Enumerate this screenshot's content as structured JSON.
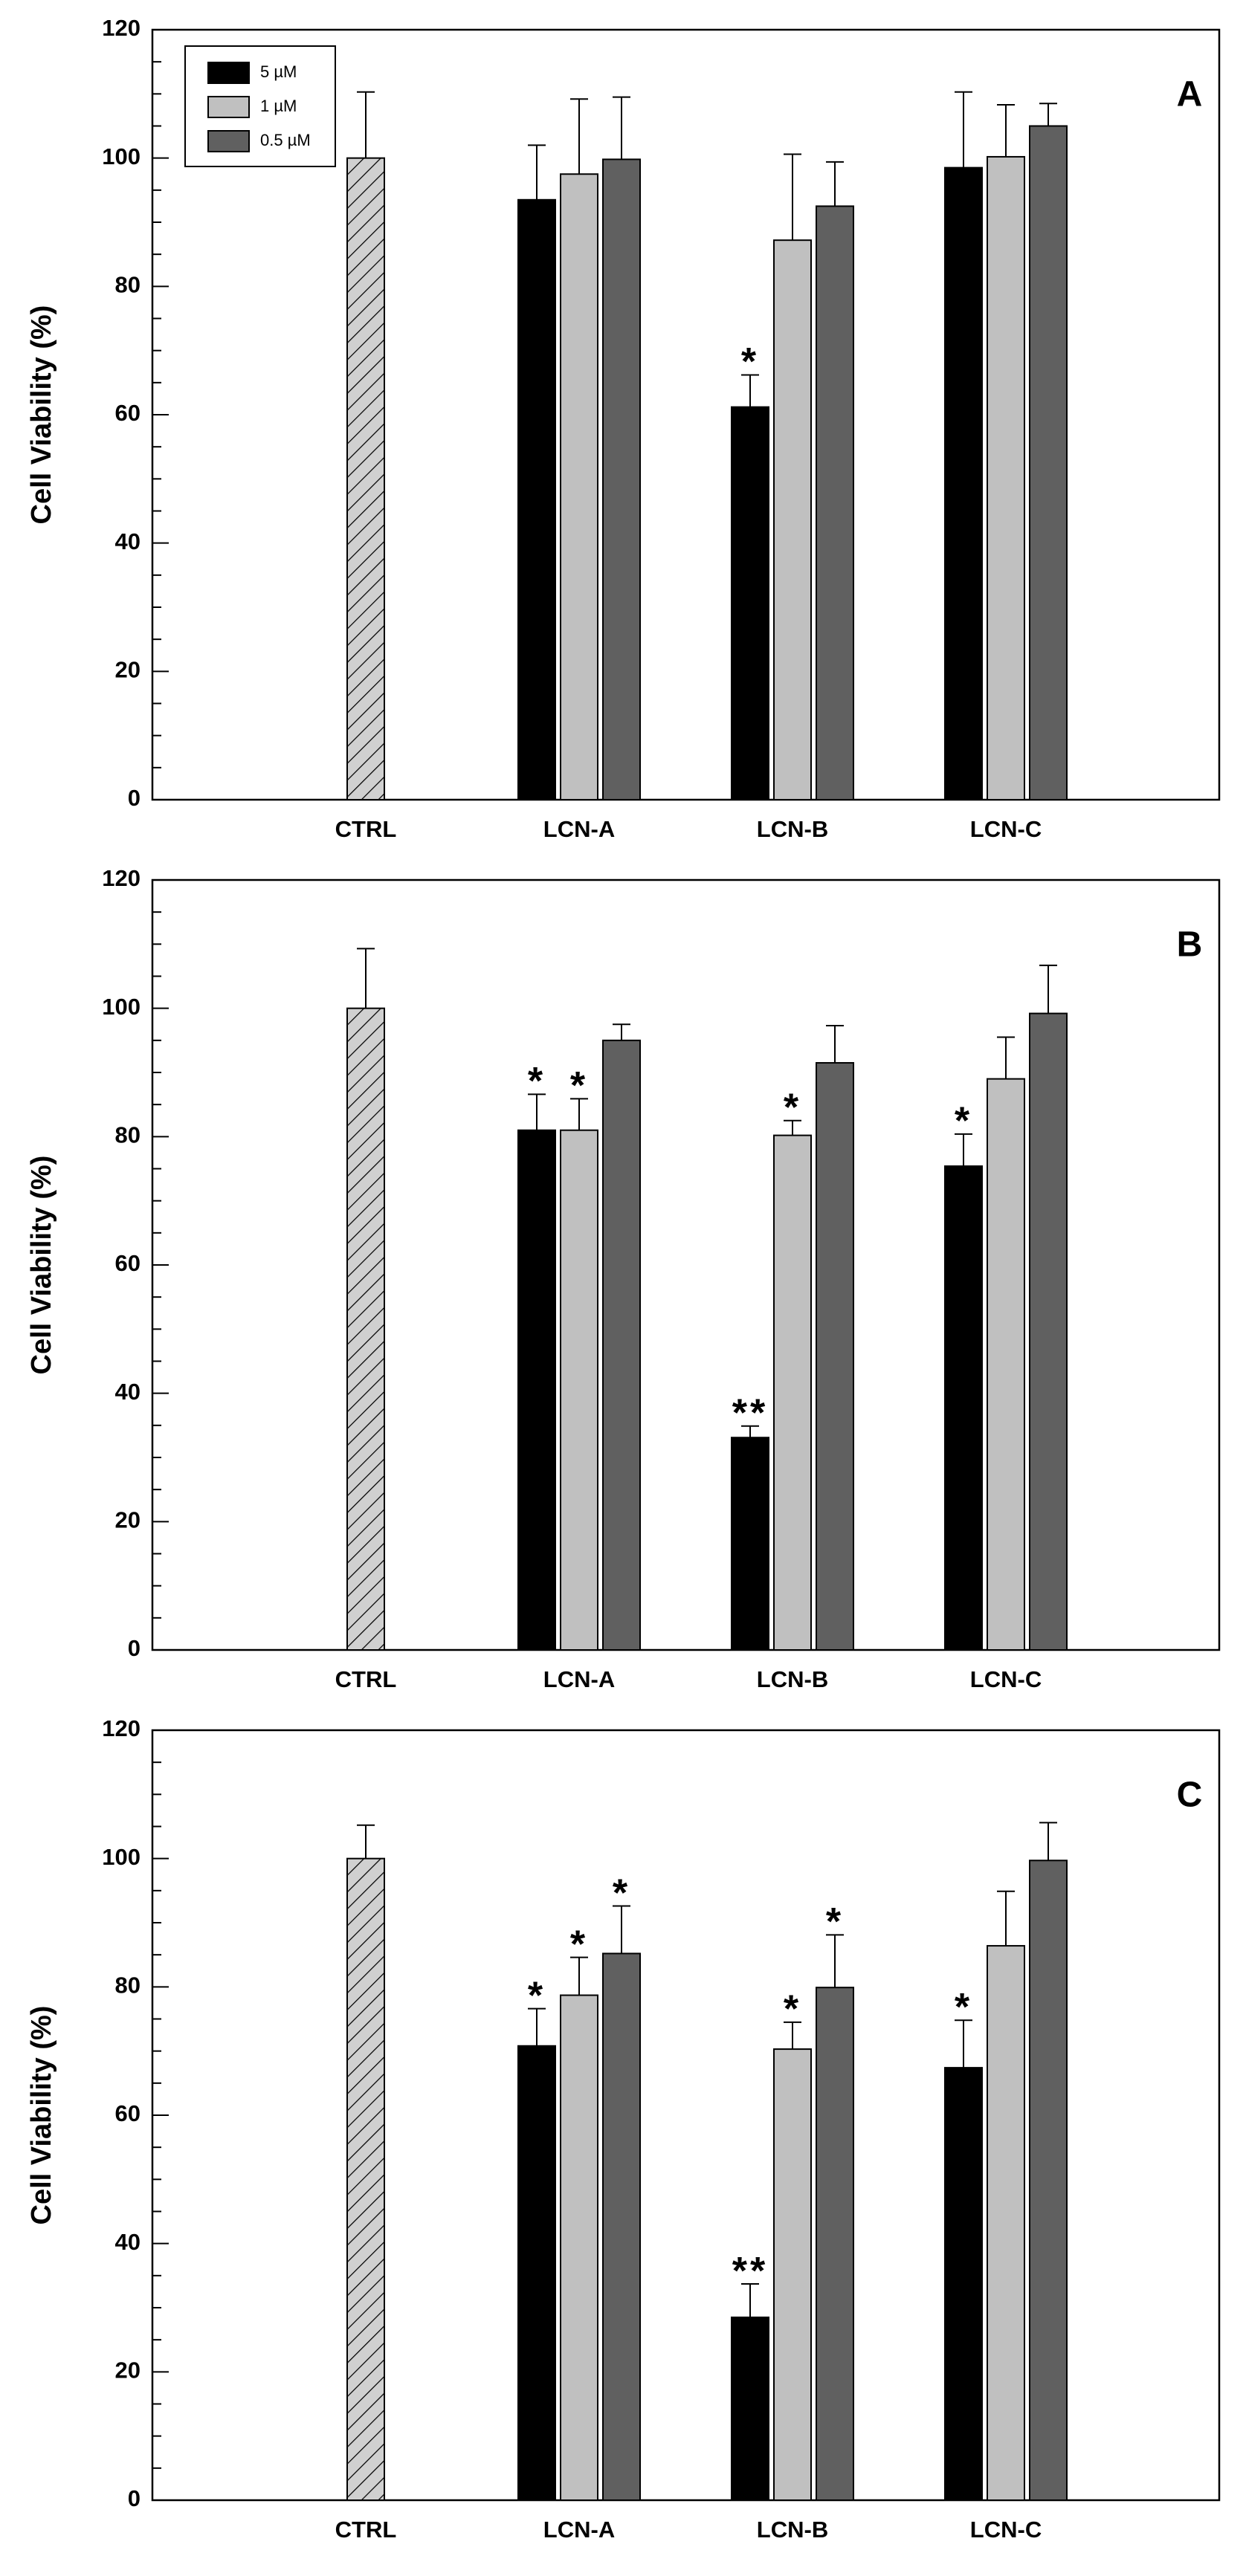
{
  "chart_data": [
    {
      "type": "bar",
      "panel_label": "A",
      "ylabel": "Cell Viability (%)",
      "categories": [
        "CTRL",
        "LCN-A",
        "LCN-B",
        "LCN-C"
      ],
      "ylim": [
        0,
        120
      ],
      "yticks": [
        0,
        20,
        40,
        60,
        80,
        100,
        120
      ],
      "yminorticks": [
        5,
        10,
        15,
        25,
        30,
        35,
        45,
        50,
        55,
        65,
        70,
        75,
        85,
        90,
        95,
        105,
        110,
        115
      ],
      "legend": "upper left",
      "series": [
        {
          "color": "#d0d0d0",
          "hatch": true,
          "values": [
            100,
            null,
            null,
            null
          ],
          "errors": [
            10.3,
            null,
            null,
            null
          ]
        },
        {
          "name": "5 µM",
          "color": "#000000",
          "values": [
            null,
            93.5,
            61.2,
            98.5
          ],
          "errors": [
            null,
            8.5,
            5,
            11.8
          ],
          "significance": [
            null,
            null,
            "*",
            null
          ]
        },
        {
          "name": "1 µM",
          "color": "#c0c0c0",
          "values": [
            null,
            97.5,
            87.2,
            100.2
          ],
          "errors": [
            null,
            11.7,
            13.4,
            8.1
          ]
        },
        {
          "name": "0.5 µM",
          "color": "#606060",
          "values": [
            null,
            99.8,
            92.5,
            105
          ],
          "errors": [
            null,
            9.7,
            6.9,
            3.5
          ]
        }
      ]
    },
    {
      "type": "bar",
      "panel_label": "B",
      "ylabel": "Cell Viability (%)",
      "categories": [
        "CTRL",
        "LCN-A",
        "LCN-B",
        "LCN-C"
      ],
      "ylim": [
        0,
        120
      ],
      "yticks": [
        0,
        20,
        40,
        60,
        80,
        100,
        120
      ],
      "yminorticks": [
        5,
        10,
        15,
        25,
        30,
        35,
        45,
        50,
        55,
        65,
        70,
        75,
        85,
        90,
        95,
        105,
        110,
        115
      ],
      "series": [
        {
          "color": "#d0d0d0",
          "hatch": true,
          "values": [
            100,
            null,
            null,
            null
          ],
          "errors": [
            9.3,
            null,
            null,
            null
          ]
        },
        {
          "color": "#000000",
          "values": [
            null,
            81,
            33.1,
            75.4
          ],
          "errors": [
            null,
            5.6,
            1.8,
            5
          ],
          "significance": [
            null,
            "*",
            "**",
            "*"
          ]
        },
        {
          "color": "#c0c0c0",
          "values": [
            null,
            81,
            80.2,
            89
          ],
          "errors": [
            null,
            4.9,
            2.3,
            6.5
          ],
          "significance": [
            null,
            "*",
            "*",
            null
          ]
        },
        {
          "color": "#606060",
          "values": [
            null,
            95,
            91.5,
            99.2
          ],
          "errors": [
            null,
            2.5,
            5.8,
            7.5
          ]
        }
      ]
    },
    {
      "type": "bar",
      "panel_label": "C",
      "ylabel": "Cell Viability (%)",
      "categories": [
        "CTRL",
        "LCN-A",
        "LCN-B",
        "LCN-C"
      ],
      "ylim": [
        0,
        120
      ],
      "yticks": [
        0,
        20,
        40,
        60,
        80,
        100,
        120
      ],
      "yminorticks": [
        5,
        10,
        15,
        25,
        30,
        35,
        45,
        50,
        55,
        65,
        70,
        75,
        85,
        90,
        95,
        105,
        110,
        115
      ],
      "series": [
        {
          "color": "#d0d0d0",
          "hatch": true,
          "values": [
            100,
            null,
            null,
            null
          ],
          "errors": [
            5.2,
            null,
            null,
            null
          ]
        },
        {
          "color": "#000000",
          "values": [
            null,
            70.8,
            28.5,
            67.4
          ],
          "errors": [
            null,
            5.8,
            5.2,
            7.4
          ],
          "significance": [
            null,
            "*",
            "**",
            "*"
          ]
        },
        {
          "color": "#c0c0c0",
          "values": [
            null,
            78.7,
            70.3,
            86.4
          ],
          "errors": [
            null,
            5.9,
            4.2,
            8.5
          ],
          "significance": [
            null,
            "*",
            "*",
            null
          ]
        },
        {
          "color": "#606060",
          "values": [
            null,
            85.2,
            79.9,
            99.7
          ],
          "errors": [
            null,
            7.4,
            8.2,
            5.9
          ],
          "significance": [
            null,
            "*",
            "*",
            null
          ]
        }
      ]
    }
  ]
}
